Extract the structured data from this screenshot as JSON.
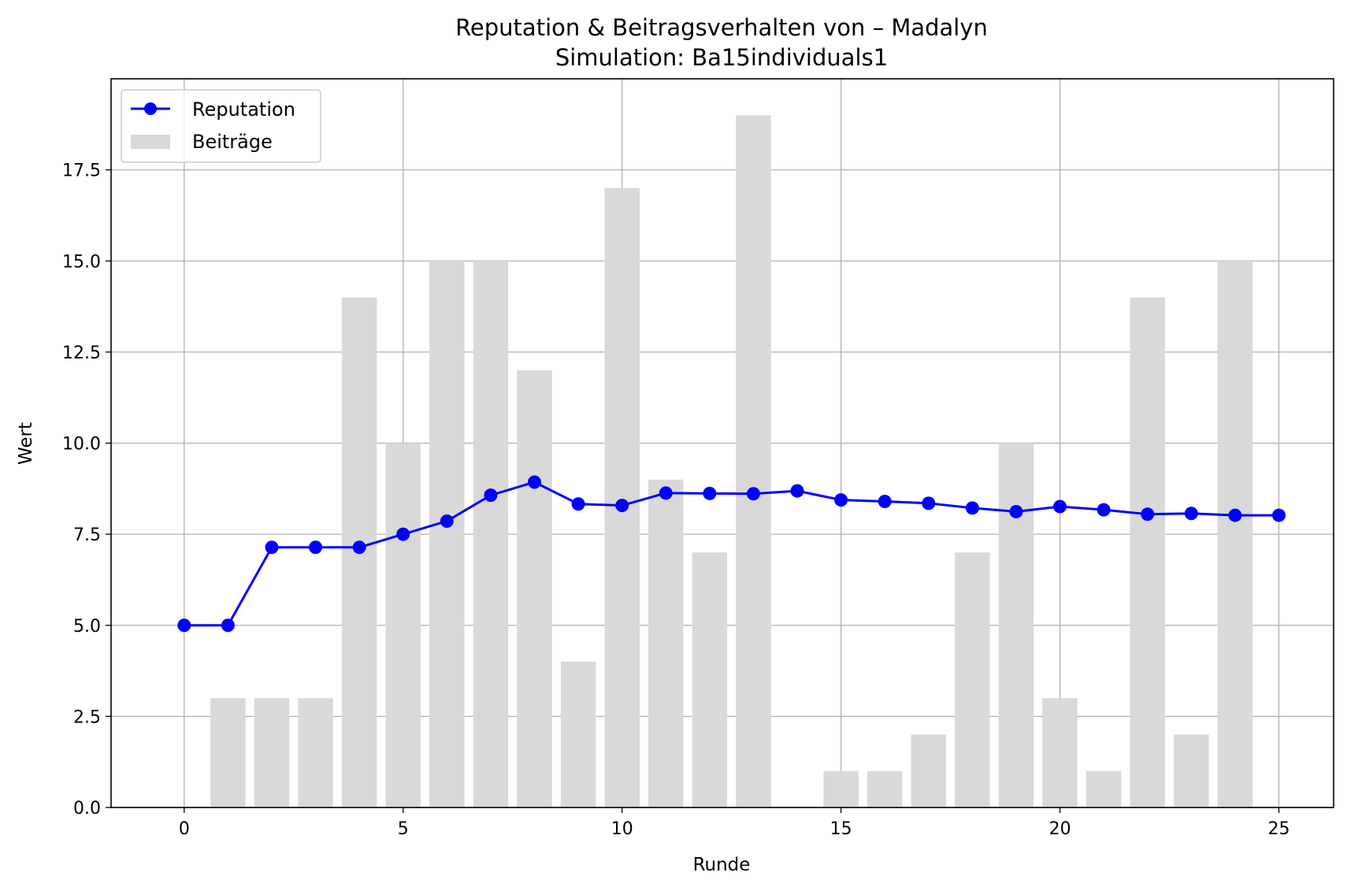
{
  "chart_data": {
    "type": "bar+line",
    "title": "Reputation & Beitragsverhalten von – Madalyn",
    "subtitle": "Simulation: Ba15individuals1",
    "xlabel": "Runde",
    "ylabel": "Wert",
    "xlim": [
      -1.67,
      26.25
    ],
    "ylim": [
      0,
      20
    ],
    "x_ticks": [
      0,
      5,
      10,
      15,
      20,
      25
    ],
    "y_ticks": [
      0.0,
      2.5,
      5.0,
      7.5,
      10.0,
      12.5,
      15.0,
      17.5
    ],
    "x_tick_labels": [
      "0",
      "5",
      "10",
      "15",
      "20",
      "25"
    ],
    "y_tick_labels": [
      "0.0",
      "2.5",
      "5.0",
      "7.5",
      "10.0",
      "12.5",
      "15.0",
      "17.5"
    ],
    "grid": true,
    "legend_position": "top-left",
    "x": [
      0,
      1,
      2,
      3,
      4,
      5,
      6,
      7,
      8,
      9,
      10,
      11,
      12,
      13,
      14,
      15,
      16,
      17,
      18,
      19,
      20,
      21,
      22,
      23,
      24,
      25
    ],
    "series": [
      {
        "name": "Reputation",
        "kind": "line",
        "color": "#0000ff",
        "marker": "circle",
        "x": [
          0,
          1,
          2,
          3,
          4,
          5,
          6,
          7,
          8,
          9,
          10,
          11,
          12,
          13,
          14,
          15,
          16,
          17,
          18,
          19,
          20,
          21,
          22,
          23,
          24,
          25
        ],
        "values": [
          5.0,
          5.0,
          7.14,
          7.14,
          7.14,
          7.5,
          7.86,
          8.57,
          8.93,
          8.33,
          8.29,
          8.63,
          8.62,
          8.61,
          8.69,
          8.44,
          8.4,
          8.35,
          8.22,
          8.12,
          8.26,
          8.17,
          8.05,
          8.07,
          8.02,
          8.02
        ]
      },
      {
        "name": "Beiträge",
        "kind": "bar",
        "color": "#d9d9d9",
        "x": [
          1,
          2,
          3,
          4,
          5,
          6,
          7,
          8,
          9,
          10,
          11,
          12,
          13,
          14,
          15,
          16,
          17,
          18,
          19,
          20,
          21,
          22,
          23,
          24
        ],
        "values": [
          3,
          3,
          3,
          14,
          10,
          15,
          15,
          12,
          4,
          17,
          9,
          7,
          19,
          0,
          1,
          1,
          2,
          7,
          10,
          3,
          1,
          14,
          2,
          15
        ]
      }
    ]
  }
}
